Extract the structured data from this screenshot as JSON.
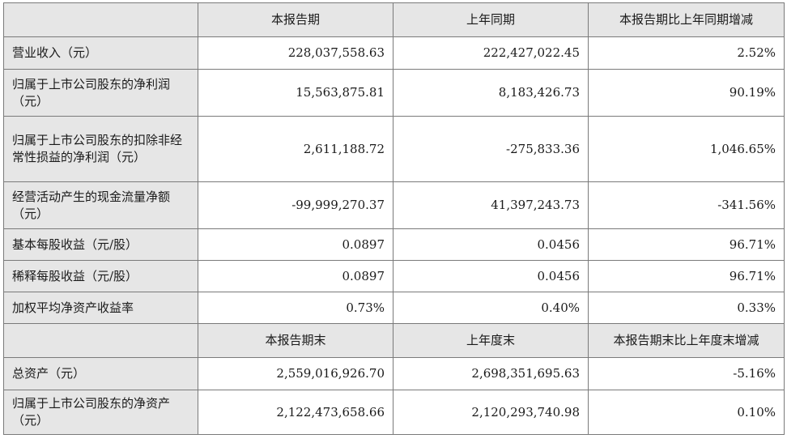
{
  "table": {
    "header1": [
      "",
      "本报告期",
      "上年同期",
      "本报告期比上年同期增减"
    ],
    "rows1": [
      {
        "label": "营业收入（元）",
        "current": "228,037,558.63",
        "prior": "222,427,022.45",
        "change": "2.52%"
      },
      {
        "label": "归属于上市公司股东的净利润（元）",
        "current": "15,563,875.81",
        "prior": "8,183,426.73",
        "change": "90.19%"
      },
      {
        "label": "归属于上市公司股东的扣除非经常性损益的净利润（元）",
        "current": "2,611,188.72",
        "prior": "-275,833.36",
        "change": "1,046.65%"
      },
      {
        "label": "经营活动产生的现金流量净额（元）",
        "current": "-99,999,270.37",
        "prior": "41,397,243.73",
        "change": "-341.56%"
      },
      {
        "label": "基本每股收益（元/股）",
        "current": "0.0897",
        "prior": "0.0456",
        "change": "96.71%"
      },
      {
        "label": "稀释每股收益（元/股）",
        "current": "0.0897",
        "prior": "0.0456",
        "change": "96.71%"
      },
      {
        "label": "加权平均净资产收益率",
        "current": "0.73%",
        "prior": "0.40%",
        "change": "0.33%"
      }
    ],
    "header2": [
      "",
      "本报告期末",
      "上年度末",
      "本报告期末比上年度末增减"
    ],
    "rows2": [
      {
        "label": "总资产（元）",
        "current": "2,559,016,926.70",
        "prior": "2,698,351,695.63",
        "change": "-5.16%"
      },
      {
        "label": "归属于上市公司股东的净资产（元）",
        "current": "2,122,473,658.66",
        "prior": "2,120,293,740.98",
        "change": "0.10%"
      }
    ]
  }
}
